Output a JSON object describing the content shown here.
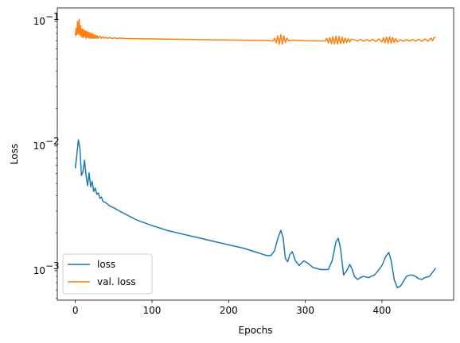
{
  "chart_data": {
    "type": "line",
    "xlabel": "Epochs",
    "ylabel": "Loss",
    "xlim": [
      -23.5,
      493.5
    ],
    "ylim": [
      0.00058,
      0.128
    ],
    "yscale": "log",
    "x_ticks": [
      0,
      100,
      200,
      300,
      400
    ],
    "y_ticks": [
      {
        "value": 0.001,
        "base": "10",
        "exp": "−3"
      },
      {
        "value": 0.01,
        "base": "10",
        "exp": "−2"
      },
      {
        "value": 0.1,
        "base": "10",
        "exp": "−1"
      }
    ],
    "legend_position": "lower-left",
    "grid": false,
    "series": [
      {
        "name": "loss",
        "color": "#1f77b4",
        "points": [
          [
            0,
            0.0066
          ],
          [
            2,
            0.0085
          ],
          [
            4,
            0.0112
          ],
          [
            6,
            0.0095
          ],
          [
            8,
            0.0058
          ],
          [
            10,
            0.0062
          ],
          [
            12,
            0.0077
          ],
          [
            14,
            0.0058
          ],
          [
            16,
            0.0048
          ],
          [
            18,
            0.0061
          ],
          [
            20,
            0.0047
          ],
          [
            22,
            0.0052
          ],
          [
            24,
            0.0043
          ],
          [
            26,
            0.0046
          ],
          [
            28,
            0.0041
          ],
          [
            30,
            0.0042
          ],
          [
            32,
            0.0038
          ],
          [
            34,
            0.0039
          ],
          [
            36,
            0.0036
          ],
          [
            40,
            0.0035
          ],
          [
            45,
            0.0033
          ],
          [
            50,
            0.0032
          ],
          [
            60,
            0.00295
          ],
          [
            80,
            0.00255
          ],
          [
            100,
            0.0023
          ],
          [
            120,
            0.0021
          ],
          [
            150,
            0.0019
          ],
          [
            180,
            0.00172
          ],
          [
            200,
            0.00161
          ],
          [
            220,
            0.00151
          ],
          [
            240,
            0.00138
          ],
          [
            250,
            0.00132
          ],
          [
            255,
            0.00132
          ],
          [
            260,
            0.00145
          ],
          [
            264,
            0.0018
          ],
          [
            268,
            0.0021
          ],
          [
            271,
            0.00185
          ],
          [
            274,
            0.00125
          ],
          [
            277,
            0.00118
          ],
          [
            280,
            0.00135
          ],
          [
            283,
            0.00142
          ],
          [
            287,
            0.0012
          ],
          [
            292,
            0.0011
          ],
          [
            298,
            0.0012
          ],
          [
            303,
            0.00115
          ],
          [
            310,
            0.00106
          ],
          [
            320,
            0.00102
          ],
          [
            330,
            0.00102
          ],
          [
            335,
            0.0012
          ],
          [
            340,
            0.0017
          ],
          [
            343,
            0.00182
          ],
          [
            346,
            0.0015
          ],
          [
            350,
            0.00092
          ],
          [
            354,
            0.001
          ],
          [
            358,
            0.00112
          ],
          [
            361,
            0.00103
          ],
          [
            364,
            0.0009
          ],
          [
            368,
            0.00085
          ],
          [
            372,
            0.00088
          ],
          [
            376,
            0.0009
          ],
          [
            382,
            0.00088
          ],
          [
            386,
            0.0009
          ],
          [
            390,
            0.00092
          ],
          [
            395,
            0.001
          ],
          [
            400,
            0.0011
          ],
          [
            405,
            0.0013
          ],
          [
            409,
            0.0014
          ],
          [
            412,
            0.0012
          ],
          [
            416,
            0.00085
          ],
          [
            420,
            0.00073
          ],
          [
            424,
            0.00075
          ],
          [
            428,
            0.00082
          ],
          [
            432,
            0.0009
          ],
          [
            436,
            0.00092
          ],
          [
            440,
            0.00092
          ],
          [
            444,
            0.0009
          ],
          [
            448,
            0.00086
          ],
          [
            452,
            0.00085
          ],
          [
            456,
            0.00088
          ],
          [
            462,
            0.0009
          ],
          [
            466,
            0.00097
          ],
          [
            470,
            0.00105
          ]
        ]
      },
      {
        "name": "val. loss",
        "color": "#ff7f0e",
        "points": [
          [
            0,
            0.076
          ],
          [
            1,
            0.088
          ],
          [
            2,
            0.078
          ],
          [
            3,
            0.1
          ],
          [
            4,
            0.079
          ],
          [
            5,
            0.104
          ],
          [
            6,
            0.077
          ],
          [
            7,
            0.092
          ],
          [
            8,
            0.075
          ],
          [
            9,
            0.087
          ],
          [
            10,
            0.074
          ],
          [
            11,
            0.086
          ],
          [
            12,
            0.075
          ],
          [
            13,
            0.084
          ],
          [
            14,
            0.073
          ],
          [
            15,
            0.083
          ],
          [
            16,
            0.074
          ],
          [
            17,
            0.082
          ],
          [
            18,
            0.073
          ],
          [
            19,
            0.081
          ],
          [
            20,
            0.073
          ],
          [
            21,
            0.08
          ],
          [
            22,
            0.073
          ],
          [
            23,
            0.079
          ],
          [
            24,
            0.073
          ],
          [
            25,
            0.078
          ],
          [
            26,
            0.073
          ],
          [
            27,
            0.077
          ],
          [
            28,
            0.073
          ],
          [
            29,
            0.076
          ],
          [
            30,
            0.073
          ],
          [
            32,
            0.076
          ],
          [
            34,
            0.073
          ],
          [
            36,
            0.075
          ],
          [
            38,
            0.073
          ],
          [
            40,
            0.0745
          ],
          [
            42,
            0.0728
          ],
          [
            45,
            0.0742
          ],
          [
            48,
            0.0727
          ],
          [
            51,
            0.0738
          ],
          [
            54,
            0.0727
          ],
          [
            58,
            0.0735
          ],
          [
            65,
            0.0728
          ],
          [
            80,
            0.0725
          ],
          [
            100,
            0.0722
          ],
          [
            130,
            0.0718
          ],
          [
            160,
            0.0713
          ],
          [
            190,
            0.0709
          ],
          [
            220,
            0.0705
          ],
          [
            250,
            0.0701
          ],
          [
            258,
            0.0695
          ],
          [
            260,
            0.073
          ],
          [
            262,
            0.0672
          ],
          [
            264,
            0.0765
          ],
          [
            266,
            0.0655
          ],
          [
            268,
            0.078
          ],
          [
            270,
            0.0655
          ],
          [
            272,
            0.0765
          ],
          [
            274,
            0.0675
          ],
          [
            276,
            0.0735
          ],
          [
            278,
            0.0695
          ],
          [
            284,
            0.0705
          ],
          [
            290,
            0.0702
          ],
          [
            300,
            0.0698
          ],
          [
            310,
            0.0697
          ],
          [
            320,
            0.0695
          ],
          [
            326,
            0.0697
          ],
          [
            328,
            0.073
          ],
          [
            330,
            0.067
          ],
          [
            332,
            0.0742
          ],
          [
            334,
            0.0662
          ],
          [
            336,
            0.0752
          ],
          [
            338,
            0.0657
          ],
          [
            340,
            0.076
          ],
          [
            342,
            0.0657
          ],
          [
            344,
            0.0755
          ],
          [
            346,
            0.0662
          ],
          [
            348,
            0.0745
          ],
          [
            350,
            0.0668
          ],
          [
            352,
            0.0735
          ],
          [
            354,
            0.0675
          ],
          [
            356,
            0.0725
          ],
          [
            358,
            0.0682
          ],
          [
            360,
            0.0718
          ],
          [
            364,
            0.0712
          ],
          [
            368,
            0.0693
          ],
          [
            372,
            0.0716
          ],
          [
            376,
            0.0692
          ],
          [
            380,
            0.0712
          ],
          [
            384,
            0.0695
          ],
          [
            388,
            0.0714
          ],
          [
            392,
            0.0688
          ],
          [
            396,
            0.0722
          ],
          [
            400,
            0.0682
          ],
          [
            402,
            0.0735
          ],
          [
            404,
            0.0672
          ],
          [
            406,
            0.0746
          ],
          [
            408,
            0.0665
          ],
          [
            410,
            0.075
          ],
          [
            412,
            0.0668
          ],
          [
            414,
            0.0742
          ],
          [
            416,
            0.0675
          ],
          [
            418,
            0.0728
          ],
          [
            420,
            0.0684
          ],
          [
            424,
            0.0712
          ],
          [
            428,
            0.0692
          ],
          [
            432,
            0.0712
          ],
          [
            436,
            0.0695
          ],
          [
            440,
            0.0714
          ],
          [
            444,
            0.0693
          ],
          [
            448,
            0.0718
          ],
          [
            452,
            0.069
          ],
          [
            456,
            0.0722
          ],
          [
            460,
            0.0692
          ],
          [
            464,
            0.0735
          ],
          [
            466,
            0.0698
          ],
          [
            468,
            0.074
          ],
          [
            470,
            0.0745
          ]
        ]
      }
    ]
  }
}
